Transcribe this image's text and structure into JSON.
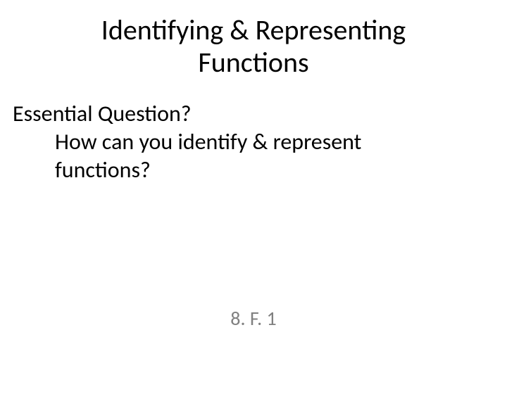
{
  "slide": {
    "title_line1": "Identifying & Representing",
    "title_line2": "Functions",
    "question_label": "Essential Question?",
    "question_text_line1": "How can you identify & represent",
    "question_text_line2": "functions?",
    "standard": "8. F. 1"
  },
  "colors": {
    "background": "#ffffff",
    "text_primary": "#000000",
    "text_secondary": "#808080"
  },
  "typography": {
    "title_fontsize": 40,
    "body_fontsize": 32,
    "standard_fontsize": 28,
    "font_family": "Calibri"
  }
}
